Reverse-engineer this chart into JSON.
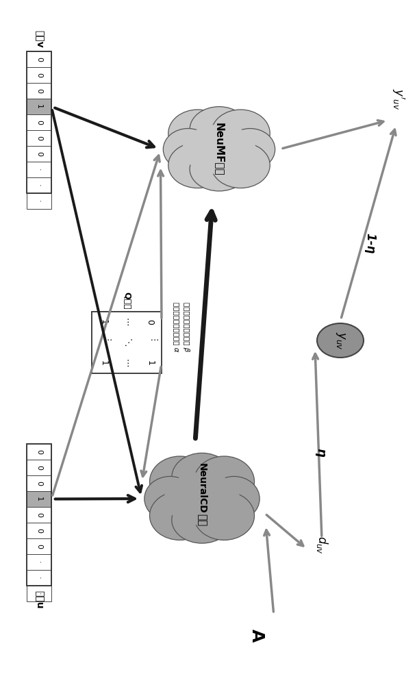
{
  "background_color": "#ffffff",
  "student_vector_values": [
    "0",
    "0",
    "0",
    "1",
    "0",
    "0",
    "0",
    "·",
    "·",
    "·"
  ],
  "student_vector_highlight_idx": 3,
  "question_vector_values": [
    "0",
    "0",
    "0",
    "1",
    "0",
    "0",
    "0",
    "·",
    "·",
    "·"
  ],
  "question_vector_highlight_idx": 3,
  "q_matrix_row1": [
    "1",
    "⋯",
    "0"
  ],
  "q_matrix_row2": [
    "⋮",
    "⋱",
    "⋮"
  ],
  "q_matrix_row3": [
    "1",
    "⋯",
    "1"
  ],
  "neuralcd_label1": "NeuralCD",
  "neuralcd_label2": "模型",
  "neumf_label1": "NeuMF模型",
  "alpha_text": "学生的知识点掌握程度 α",
  "beta_text": "试题的知识点难度信息 β",
  "student_label": "学生u",
  "question_label": "试题v",
  "q_matrix_label": "Q矩阵",
  "cloud_dark_color": "#a0a0a0",
  "cloud_light_color": "#c8c8c8",
  "yuv_color": "#909090",
  "arrow_dark": "#1a1a1a",
  "arrow_gray": "#888888",
  "arrow_light": "#aaaaaa"
}
